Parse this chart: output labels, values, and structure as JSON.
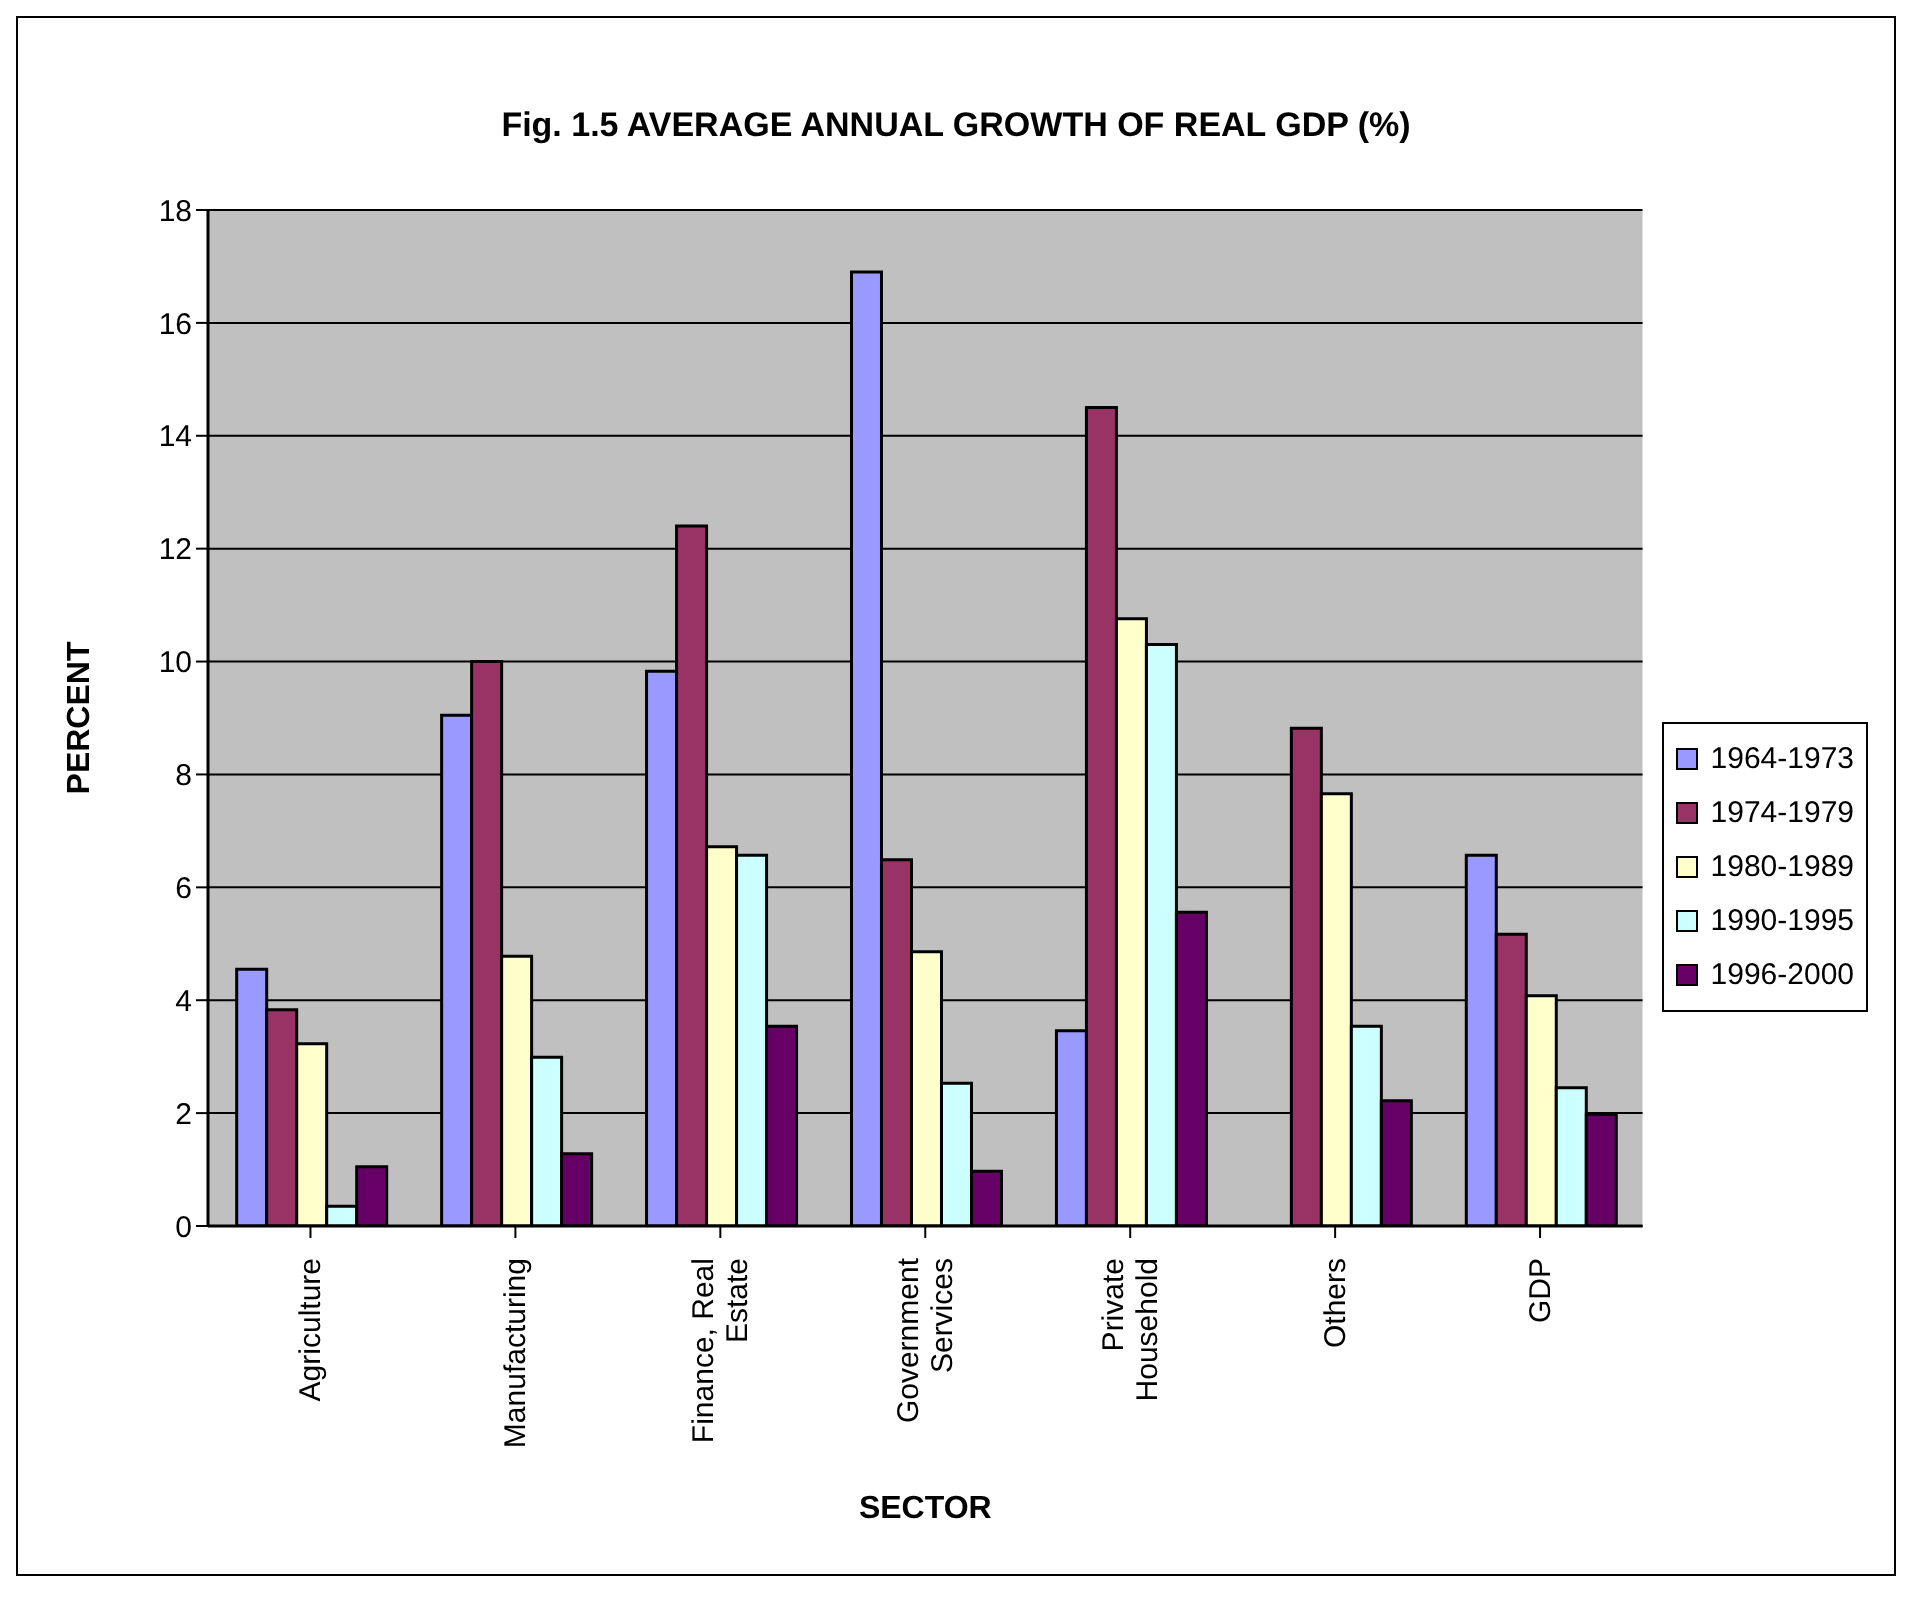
{
  "chart_data": {
    "type": "bar",
    "title": "Fig. 1.5 AVERAGE ANNUAL GROWTH OF REAL GDP (%)",
    "xlabel": "SECTOR",
    "ylabel": "PERCENT",
    "categories": [
      "Agriculture",
      "Manufacturing",
      "Finance, Real Estate",
      "Government Services",
      "Private Household",
      "Others",
      "GDP"
    ],
    "series": [
      {
        "name": "1964-1973",
        "color": "#9999ff",
        "values": [
          4.55,
          9.05,
          9.83,
          16.9,
          3.46,
          null,
          6.57
        ]
      },
      {
        "name": "1974-1979",
        "color": "#993366",
        "values": [
          3.83,
          10.0,
          12.4,
          6.49,
          14.5,
          8.82,
          5.17
        ]
      },
      {
        "name": "1980-1989",
        "color": "#ffffcc",
        "values": [
          3.23,
          4.78,
          6.72,
          4.86,
          10.76,
          7.66,
          4.08
        ]
      },
      {
        "name": "1990-1995",
        "color": "#ccffff",
        "values": [
          0.35,
          2.99,
          6.57,
          2.53,
          10.3,
          3.54,
          2.45
        ]
      },
      {
        "name": "1996-2000",
        "color": "#660066",
        "values": [
          1.05,
          1.28,
          3.54,
          0.97,
          5.56,
          2.22,
          1.98
        ]
      }
    ],
    "ylim": [
      0,
      18
    ],
    "yticks": [
      0,
      2,
      4,
      6,
      8,
      10,
      12,
      14,
      16,
      18
    ],
    "grid": "y",
    "legend": "right"
  }
}
